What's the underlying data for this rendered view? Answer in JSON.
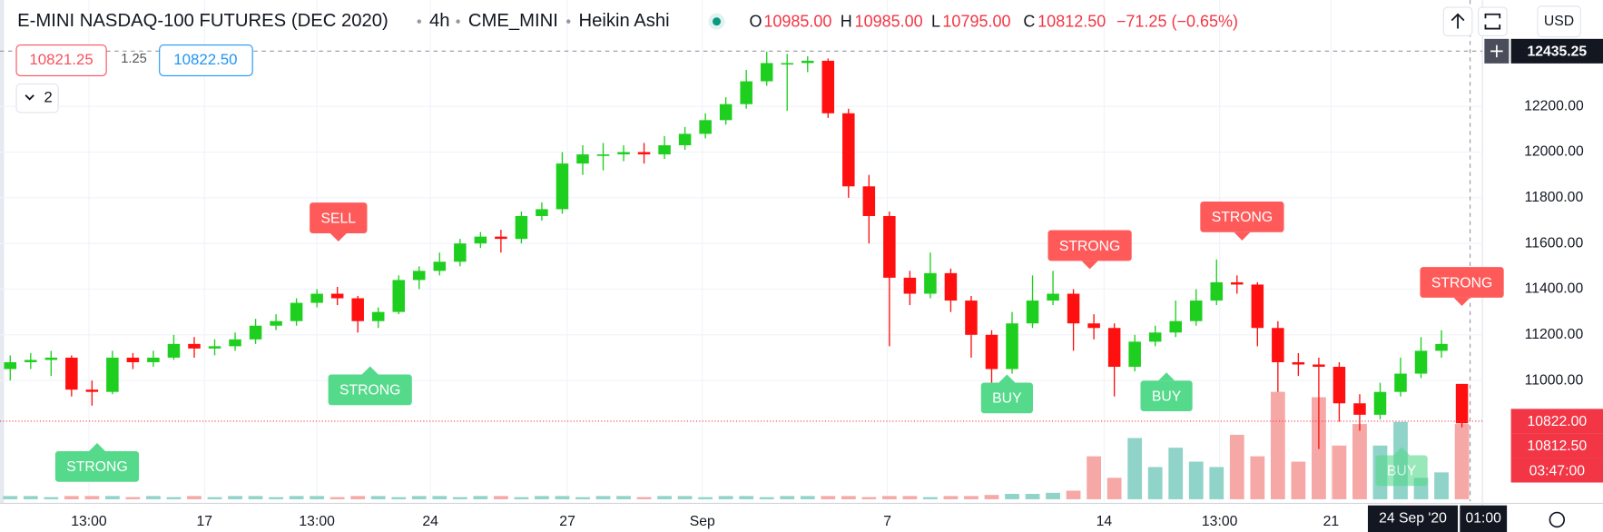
{
  "header": {
    "title": "E-MINI NASDAQ-100 FUTURES (DEC 2020)",
    "interval": "4h",
    "exchange": "CME_MINI",
    "style": "Heikin Ashi",
    "ohlc": [
      {
        "key": "O",
        "value": "10985.00"
      },
      {
        "key": "H",
        "value": "10985.00"
      },
      {
        "key": "L",
        "value": "10795.00"
      },
      {
        "key": "C",
        "value": "10812.50"
      }
    ],
    "change": "−71.25 (−0.65%)",
    "sell_price": "10821.25",
    "spread": "1.25",
    "buy_price": "10822.50",
    "indicators": "2",
    "currency": "USD"
  },
  "chart_data": {
    "type": "candlestick",
    "grid": true,
    "up_color": "#1fcf1f",
    "down_color": "#ff1010",
    "volume_up_color": "#8fd3c9",
    "volume_down_color": "#f5a8a6",
    "xlim": [
      -0.5,
      72
    ],
    "ylim": [
      10471,
      12666
    ],
    "vlim": [
      0,
      100
    ],
    "xticks": [
      {
        "value": 3.85,
        "label": "13:00"
      },
      {
        "value": 9.5,
        "label": "17"
      },
      {
        "value": 15,
        "label": "13:00"
      },
      {
        "value": 20.55,
        "label": "24"
      },
      {
        "value": 27.25,
        "label": "27"
      },
      {
        "value": 33.85,
        "label": "Sep"
      },
      {
        "value": 42.9,
        "label": "7"
      },
      {
        "value": 53.5,
        "label": "14"
      },
      {
        "value": 59.15,
        "label": "13:00"
      },
      {
        "value": 64.6,
        "label": "21"
      }
    ],
    "yticks": [
      {
        "value": 11000,
        "label": "11000.00"
      },
      {
        "value": 11200,
        "label": "11200.00"
      },
      {
        "value": 11400,
        "label": "11400.00"
      },
      {
        "value": 11600,
        "label": "11600.00"
      },
      {
        "value": 11800,
        "label": "11800.00"
      },
      {
        "value": 12000,
        "label": "12000.00"
      },
      {
        "value": 12200,
        "label": "12200.00"
      }
    ],
    "open": [
      11050,
      11080,
      11090,
      11100,
      10960,
      10950,
      11100,
      11080,
      11100,
      11160,
      11140,
      11150,
      11180,
      11240,
      11260,
      11340,
      11380,
      11360,
      11260,
      11300,
      11440,
      11480,
      11520,
      11600,
      11630,
      11620,
      11720,
      11750,
      11950,
      11990,
      11990,
      12000,
      11990,
      12030,
      12080,
      12140,
      12210,
      12310,
      12390,
      12390,
      12400,
      12170,
      11850,
      11720,
      11450,
      11380,
      11470,
      11350,
      11200,
      11050,
      11250,
      11350,
      11380,
      11250,
      11230,
      11060,
      11170,
      11210,
      11260,
      11350,
      11430,
      11420,
      11230,
      11080,
      11070,
      11060,
      10900,
      10850,
      10950,
      11030,
      11130,
      10985
    ],
    "high": [
      11110,
      11120,
      11130,
      11110,
      11000,
      11130,
      11120,
      11130,
      11200,
      11190,
      11180,
      11210,
      11270,
      11290,
      11360,
      11400,
      11410,
      11370,
      11320,
      11460,
      11500,
      11560,
      11620,
      11650,
      11660,
      11740,
      11780,
      12000,
      12030,
      12040,
      12030,
      12040,
      12070,
      12110,
      12170,
      12240,
      12360,
      12440,
      12430,
      12420,
      12410,
      12190,
      11900,
      11740,
      11480,
      11560,
      11490,
      11370,
      11220,
      11300,
      11460,
      11480,
      11400,
      11290,
      11250,
      11200,
      11240,
      11350,
      11400,
      11530,
      11460,
      11430,
      11260,
      11120,
      11100,
      11080,
      10940,
      10990,
      11100,
      11190,
      11220,
      10985
    ],
    "low": [
      11000,
      11050,
      11020,
      10930,
      10890,
      10940,
      11050,
      11060,
      11090,
      11100,
      11110,
      11130,
      11160,
      11220,
      11240,
      11320,
      11330,
      11210,
      11230,
      11290,
      11400,
      11460,
      11500,
      11580,
      11560,
      11600,
      11700,
      11730,
      11900,
      11920,
      11960,
      11950,
      11970,
      12010,
      12060,
      12120,
      12190,
      12290,
      12180,
      12350,
      12150,
      11800,
      11600,
      11150,
      11330,
      11360,
      11300,
      11100,
      10920,
      11030,
      11230,
      11330,
      11130,
      11180,
      10930,
      11040,
      11150,
      11190,
      11240,
      11330,
      11380,
      11150,
      10950,
      11020,
      10700,
      10820,
      10780,
      10830,
      10930,
      11010,
      11100,
      10795
    ],
    "close": [
      11080,
      11090,
      11100,
      10960,
      10950,
      11100,
      11080,
      11100,
      11160,
      11140,
      11150,
      11180,
      11240,
      11260,
      11340,
      11380,
      11360,
      11260,
      11300,
      11440,
      11480,
      11520,
      11600,
      11630,
      11620,
      11720,
      11750,
      11950,
      11990,
      11990,
      12000,
      11990,
      12030,
      12080,
      12140,
      12210,
      12310,
      12390,
      12390,
      12400,
      12170,
      11850,
      11720,
      11450,
      11380,
      11470,
      11350,
      11200,
      11050,
      11250,
      11350,
      11380,
      11250,
      11230,
      11060,
      11170,
      11210,
      11260,
      11350,
      11430,
      11420,
      11230,
      11080,
      11070,
      11060,
      10900,
      10850,
      10950,
      11030,
      11130,
      11160,
      10812.5
    ],
    "volume": [
      3,
      3,
      2,
      3,
      3,
      3,
      2,
      3,
      2,
      3,
      2,
      3,
      3,
      2,
      3,
      3,
      2,
      3,
      3,
      2,
      3,
      3,
      2,
      3,
      3,
      2,
      3,
      3,
      2,
      3,
      3,
      2,
      3,
      3,
      2,
      3,
      3,
      2,
      3,
      3,
      3,
      3,
      2,
      3,
      3,
      2,
      3,
      3,
      4,
      5,
      5,
      6,
      8,
      40,
      20,
      57,
      30,
      48,
      35,
      30,
      60,
      40,
      100,
      35,
      95,
      50,
      70,
      50,
      72,
      20,
      25,
      70
    ],
    "price_labels": [
      {
        "value": 10822,
        "label": "10822.00"
      },
      {
        "value": 10812.5,
        "label": "10812.50"
      }
    ],
    "countdown": "03:47:00",
    "crosshair": {
      "price": "12435.25",
      "date": "24 Sep '20",
      "time": "01:00"
    },
    "signal_colors": {
      "buy": "#55d98b",
      "sell": "#ff5a5a"
    },
    "signals": [
      {
        "text": "SELL",
        "side": "sell"
      },
      {
        "text": "STRONG",
        "side": "buy"
      },
      {
        "text": "STRONG",
        "side": "buy"
      },
      {
        "text": "BUY",
        "side": "buy"
      },
      {
        "text": "BUY",
        "side": "buy"
      },
      {
        "text": "STRONG",
        "side": "sell"
      },
      {
        "text": "STRONG",
        "side": "sell"
      },
      {
        "text": "STRONG",
        "side": "sell"
      },
      {
        "text": "BUY",
        "side": "buy"
      }
    ]
  }
}
